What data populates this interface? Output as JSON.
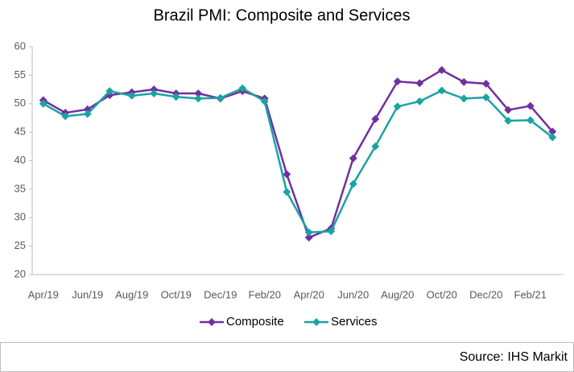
{
  "chart_data": {
    "type": "line",
    "title": "Brazil PMI: Composite and Services",
    "categories": [
      "Apr/19",
      null,
      "Jun/19",
      null,
      "Aug/19",
      null,
      "Oct/19",
      null,
      "Dec/19",
      null,
      "Feb/20",
      null,
      "Apr/20",
      null,
      "Jun/20",
      null,
      "Aug/20",
      null,
      "Oct/20",
      null,
      "Dec/20",
      null,
      "Feb/21",
      null
    ],
    "series": [
      {
        "name": "Composite",
        "color": "#7030a0",
        "values": [
          50.6,
          48.4,
          49.0,
          51.5,
          52.0,
          52.5,
          51.8,
          51.8,
          50.9,
          52.2,
          50.9,
          37.6,
          26.5,
          28.1,
          40.4,
          47.3,
          53.9,
          53.6,
          55.9,
          53.8,
          53.5,
          48.9,
          49.6,
          45.1
        ]
      },
      {
        "name": "Services",
        "color": "#1aa3a3",
        "values": [
          50.0,
          47.8,
          48.2,
          52.2,
          51.4,
          51.8,
          51.2,
          50.9,
          51.0,
          52.7,
          50.4,
          34.5,
          27.4,
          27.6,
          35.9,
          42.5,
          49.5,
          50.4,
          52.3,
          50.9,
          51.1,
          47.0,
          47.1,
          44.1
        ]
      }
    ],
    "ylim": [
      20,
      60
    ],
    "yticks": [
      20,
      25,
      30,
      35,
      40,
      45,
      50,
      55,
      60
    ],
    "source": "Source: IHS Markit"
  }
}
